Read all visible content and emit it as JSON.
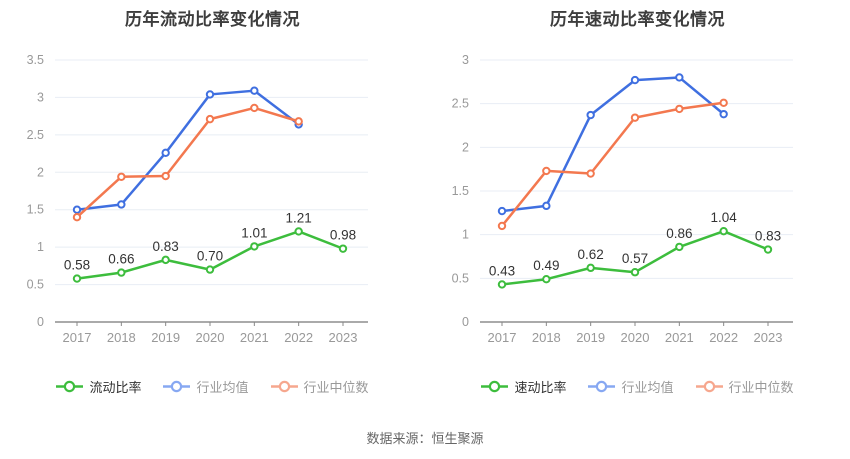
{
  "page": {
    "background": "#ffffff",
    "source_label": "数据来源：恒生聚源"
  },
  "colors": {
    "grid_line": "#e8edf4",
    "axis_line": "#777777",
    "tick_mark": "#888888",
    "axis_label": "#999999",
    "data_label": "#333333",
    "title_text": "#3d3d3d",
    "source_text": "#666666"
  },
  "chart_data": [
    {
      "type": "line",
      "title": "历年流动比率变化情况",
      "categories": [
        "2017",
        "2018",
        "2019",
        "2020",
        "2021",
        "2022",
        "2023"
      ],
      "ylim": [
        0,
        3.5
      ],
      "ytick_step": 0.5,
      "grid": true,
      "legend_position": "bottom",
      "series": [
        {
          "name": "流动比率",
          "color": "#3dbd3d",
          "legend_color": "#3dbd3d",
          "legend_text_color": "#333333",
          "values": [
            0.58,
            0.66,
            0.83,
            0.7,
            1.01,
            1.21,
            0.98
          ],
          "labels": [
            "0.58",
            "0.66",
            "0.83",
            "0.70",
            "1.01",
            "1.21",
            "0.98"
          ]
        },
        {
          "name": "行业均值",
          "color": "#3f6fe0",
          "legend_color": "#87a8f2",
          "legend_text_color": "#999999",
          "values": [
            1.5,
            1.57,
            2.26,
            3.04,
            3.09,
            2.64,
            null
          ]
        },
        {
          "name": "行业中位数",
          "color": "#f3784f",
          "legend_color": "#f6a78e",
          "legend_text_color": "#999999",
          "values": [
            1.4,
            1.94,
            1.95,
            2.71,
            2.86,
            2.68,
            null
          ]
        }
      ]
    },
    {
      "type": "line",
      "title": "历年速动比率变化情况",
      "categories": [
        "2017",
        "2018",
        "2019",
        "2020",
        "2021",
        "2022",
        "2023"
      ],
      "ylim": [
        0,
        3
      ],
      "ytick_step": 0.5,
      "grid": true,
      "legend_position": "bottom",
      "series": [
        {
          "name": "速动比率",
          "color": "#3dbd3d",
          "legend_color": "#3dbd3d",
          "legend_text_color": "#333333",
          "values": [
            0.43,
            0.49,
            0.62,
            0.57,
            0.86,
            1.04,
            0.83
          ],
          "labels": [
            "0.43",
            "0.49",
            "0.62",
            "0.57",
            "0.86",
            "1.04",
            "0.83"
          ]
        },
        {
          "name": "行业均值",
          "color": "#3f6fe0",
          "legend_color": "#87a8f2",
          "legend_text_color": "#999999",
          "values": [
            1.27,
            1.33,
            2.37,
            2.77,
            2.8,
            2.38,
            null
          ]
        },
        {
          "name": "行业中位数",
          "color": "#f3784f",
          "legend_color": "#f6a78e",
          "legend_text_color": "#999999",
          "values": [
            1.1,
            1.73,
            1.7,
            2.34,
            2.44,
            2.51,
            null
          ]
        }
      ]
    }
  ]
}
